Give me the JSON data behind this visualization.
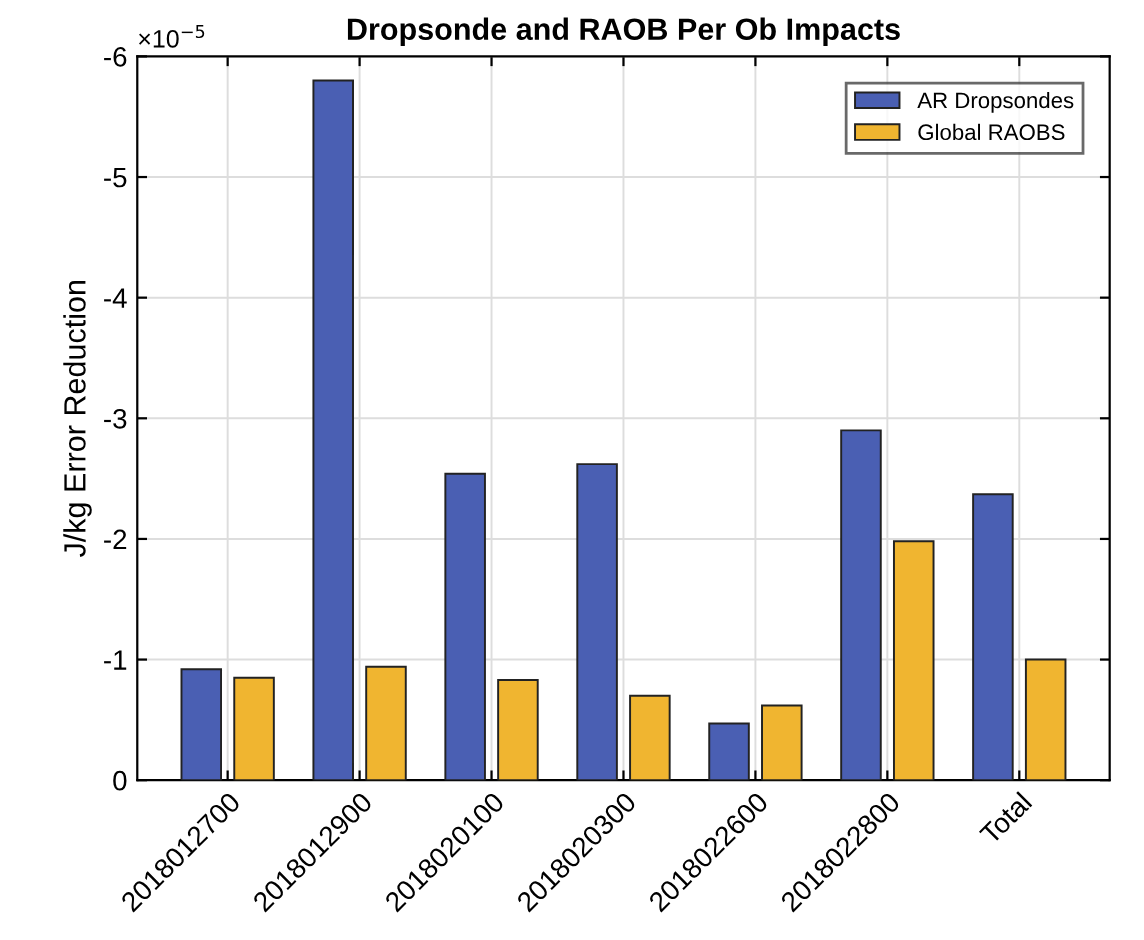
{
  "chart_data": {
    "type": "bar",
    "title": "Dropsonde and RAOB Per Ob Impacts",
    "ylabel": "J/kg Error Reduction",
    "categories": [
      "2018012700",
      "2018012900",
      "2018020100",
      "2018020300",
      "2018022600",
      "2018022800",
      "Total"
    ],
    "series": [
      {
        "name": "AR Dropsondes",
        "color": "#4a5fb3",
        "values": [
          -0.92,
          -5.8,
          -2.54,
          -2.62,
          -0.47,
          -2.9,
          -2.37
        ]
      },
      {
        "name": "Global RAOBS",
        "color": "#f0b530",
        "values": [
          -0.85,
          -0.94,
          -0.83,
          -0.7,
          -0.62,
          -1.98,
          -1.0
        ]
      }
    ],
    "ylim": [
      0,
      -6
    ],
    "yticks": [
      0,
      -1,
      -2,
      -3,
      -4,
      -5,
      -6
    ],
    "grid": true,
    "legend": "top right",
    "annotations": [
      "×10$^{−5}$"
    ]
  }
}
